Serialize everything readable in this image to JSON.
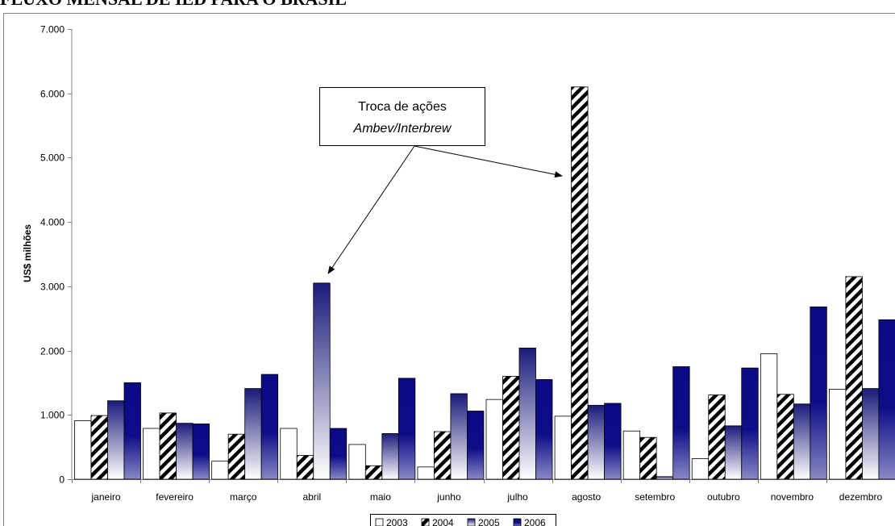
{
  "page_title": "FLUXO MENSAL DE IED PARA O BRASIL",
  "colors": {
    "s2003": "#ffffff",
    "s2004": "#000000",
    "s2005": "#1a1a7a",
    "s2006": "#0a0a85",
    "axis": "#808080",
    "frame": "#808080"
  },
  "chart_data": {
    "type": "bar",
    "title": "",
    "xlabel": "",
    "ylabel": "US$ milhões",
    "ylim": [
      0,
      7000
    ],
    "yticks": [
      0,
      1000,
      2000,
      3000,
      4000,
      5000,
      6000,
      7000
    ],
    "ytick_labels": [
      "0",
      "1.000",
      "2.000",
      "3.000",
      "4.000",
      "5.000",
      "6.000",
      "7.000"
    ],
    "grid": false,
    "legend_position": "bottom",
    "categories": [
      "janeiro",
      "fevereiro",
      "março",
      "abril",
      "maio",
      "junho",
      "julho",
      "agosto",
      "setembro",
      "outubro",
      "novembro",
      "dezembro"
    ],
    "series": [
      {
        "name": "2003",
        "pattern": "white",
        "values": [
          910,
          790,
          280,
          790,
          540,
          190,
          1240,
          980,
          750,
          320,
          1950,
          1400
        ]
      },
      {
        "name": "2004",
        "pattern": "diagonal-stripes",
        "values": [
          990,
          1030,
          700,
          370,
          210,
          740,
          1600,
          6100,
          650,
          1310,
          1320,
          3150
        ]
      },
      {
        "name": "2005",
        "pattern": "gradient-navy",
        "values": [
          1220,
          870,
          1410,
          3050,
          710,
          1330,
          2040,
          1150,
          40,
          830,
          1170,
          1410
        ]
      },
      {
        "name": "2006",
        "pattern": "gradient-navy-dark",
        "values": [
          1500,
          860,
          1630,
          790,
          1570,
          1060,
          1550,
          1180,
          1750,
          1730,
          2680,
          2480
        ]
      }
    ],
    "annotations": [
      {
        "line1": "Troca de ações",
        "line2": "Ambev/Interbrew",
        "targets": [
          {
            "category": "abril",
            "value": 3050
          },
          {
            "category": "agosto",
            "value": 6100
          }
        ]
      }
    ]
  }
}
